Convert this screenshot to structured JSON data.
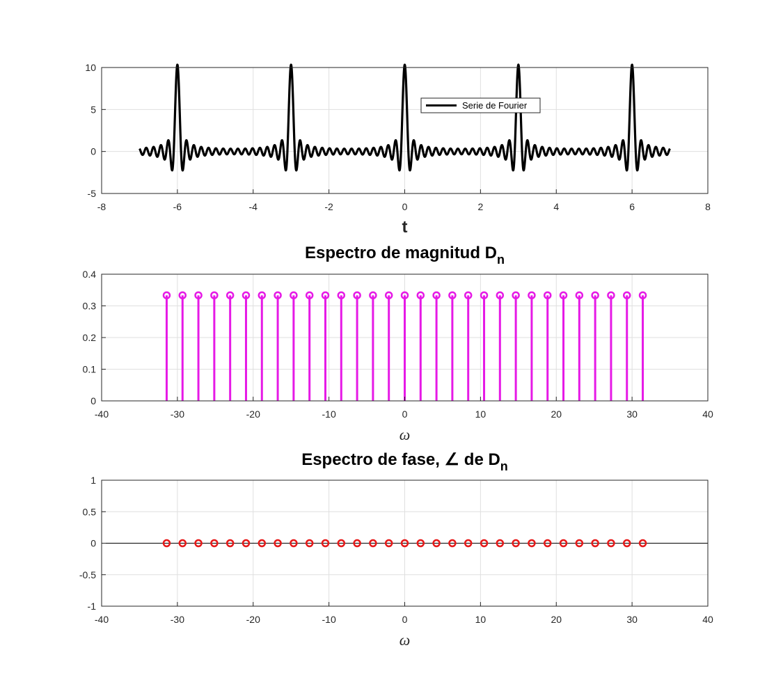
{
  "figure": {
    "background": "#ffffff"
  },
  "chart_data": [
    {
      "type": "line",
      "title": "",
      "xlabel": "t",
      "ylabel": "",
      "xlim": [
        -8,
        8
      ],
      "ylim": [
        -5,
        10
      ],
      "xticks": [
        "-8",
        "-6",
        "-4",
        "-2",
        "0",
        "2",
        "4",
        "6",
        "8"
      ],
      "yticks": [
        "-5",
        "0",
        "5",
        "10"
      ],
      "grid": true,
      "legend": {
        "entries": [
          "Serie de Fourier"
        ],
        "placement": "top-center"
      },
      "series": [
        {
          "name": "Serie de Fourier",
          "color": "#000000",
          "function": "fourier_series",
          "period": 3,
          "harmonics": 15,
          "coefficient": 0.3333,
          "x_range": [
            -7,
            7
          ],
          "peak_value": 10,
          "peak_positions": [
            -6,
            -3,
            0,
            3,
            6
          ]
        }
      ]
    },
    {
      "type": "stem",
      "title_main": "Espectro de magnitud D",
      "title_sub": "n",
      "xlabel": "ω",
      "ylabel": "",
      "xlim": [
        -40,
        40
      ],
      "ylim": [
        0,
        0.4
      ],
      "xticks": [
        "-40",
        "-30",
        "-20",
        "-10",
        "0",
        "10",
        "20",
        "30",
        "40"
      ],
      "yticks": [
        "0",
        "0.1",
        "0.2",
        "0.3",
        "0.4"
      ],
      "grid": true,
      "series": [
        {
          "color": "#e619e6",
          "x": [
            -31.4159,
            -29.3215,
            -27.2271,
            -25.1327,
            -23.0383,
            -20.944,
            -18.8496,
            -16.7552,
            -14.6608,
            -12.5664,
            -10.472,
            -8.3776,
            -6.2832,
            -4.1888,
            -2.0944,
            0,
            2.0944,
            4.1888,
            6.2832,
            8.3776,
            10.472,
            12.5664,
            14.6608,
            16.7552,
            18.8496,
            20.944,
            23.0383,
            25.1327,
            27.2271,
            29.3215,
            31.4159
          ],
          "y_constant": 0.3333
        }
      ]
    },
    {
      "type": "stem",
      "title_main": "Espectro de fase, ∠ de D",
      "title_sub": "n",
      "xlabel": "ω",
      "ylabel": "",
      "xlim": [
        -40,
        40
      ],
      "ylim": [
        -1,
        1
      ],
      "xticks": [
        "-40",
        "-30",
        "-20",
        "-10",
        "0",
        "10",
        "20",
        "30",
        "40"
      ],
      "yticks": [
        "-1",
        "-0.5",
        "0",
        "0.5",
        "1"
      ],
      "grid": true,
      "series": [
        {
          "color": "#e61919",
          "x": [
            -31.4159,
            -29.3215,
            -27.2271,
            -25.1327,
            -23.0383,
            -20.944,
            -18.8496,
            -16.7552,
            -14.6608,
            -12.5664,
            -10.472,
            -8.3776,
            -6.2832,
            -4.1888,
            -2.0944,
            0,
            2.0944,
            4.1888,
            6.2832,
            8.3776,
            10.472,
            12.5664,
            14.6608,
            16.7552,
            18.8496,
            20.944,
            23.0383,
            25.1327,
            27.2271,
            29.3215,
            31.4159
          ],
          "y_constant": 0,
          "baseline": true
        }
      ]
    }
  ]
}
